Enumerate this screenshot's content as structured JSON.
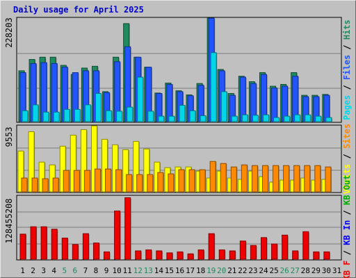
{
  "title": "Daily usage for April 2025",
  "colors": {
    "pages": "#00d6e8",
    "files": "#2255ff",
    "hits": "#1e8a5e",
    "sites": "#ff8a00",
    "visits": "#ffff00",
    "kb_f": "#ee0000",
    "kb_in": "#0000ee",
    "kb_out": "#00aa00",
    "weekend_day": "#1e8a5e",
    "weekday": "#000000"
  },
  "chart_data": [
    {
      "type": "bar",
      "panel": "hits-files-pages",
      "title": "",
      "ymax_label": "228203",
      "ylim": [
        0,
        228203
      ],
      "legend": [
        {
          "name": "Pages",
          "color": "#00d6e8"
        },
        {
          "sep": "/"
        },
        {
          "name": "Files",
          "color": "#2255ff"
        },
        {
          "sep": "/"
        },
        {
          "name": "Hits",
          "color": "#1e8a5e"
        }
      ],
      "categories": [
        "1",
        "2",
        "3",
        "4",
        "5",
        "6",
        "7",
        "8",
        "9",
        "10",
        "11",
        "12",
        "13",
        "14",
        "15",
        "16",
        "17",
        "18",
        "19",
        "20",
        "21",
        "22",
        "23",
        "24",
        "25",
        "26",
        "27",
        "28",
        "29",
        "30",
        "31"
      ],
      "weekend_days": [
        "5",
        "6",
        "12",
        "13",
        "19",
        "20",
        "26",
        "27"
      ],
      "series": [
        {
          "name": "Hits",
          "color": "#1e8a5e",
          "values": [
            112000,
            137000,
            142000,
            142000,
            124000,
            104000,
            118000,
            122000,
            66000,
            142000,
            216000,
            142000,
            120000,
            63000,
            85000,
            68000,
            59000,
            84000,
            228000,
            115000,
            62000,
            100000,
            88000,
            108000,
            78000,
            82000,
            108000,
            58000,
            58000,
            60000,
            null
          ]
        },
        {
          "name": "Files",
          "color": "#2255ff",
          "values": [
            108000,
            128000,
            130000,
            128000,
            120000,
            108000,
            112000,
            112000,
            64000,
            132000,
            165000,
            142000,
            120000,
            62000,
            82000,
            66000,
            57000,
            80000,
            228000,
            112000,
            58000,
            98000,
            84000,
            104000,
            74000,
            78000,
            100000,
            55000,
            55000,
            58000,
            null
          ]
        },
        {
          "name": "Pages",
          "color": "#00d6e8",
          "values": [
            24000,
            37000,
            21000,
            21000,
            27000,
            27000,
            37000,
            62000,
            24000,
            23000,
            32000,
            98000,
            23000,
            12000,
            12000,
            36000,
            24000,
            13000,
            152000,
            66000,
            12000,
            15000,
            14000,
            15000,
            9000,
            12000,
            15000,
            15000,
            12000,
            9000,
            null
          ]
        }
      ]
    },
    {
      "type": "bar",
      "panel": "visits-sites",
      "title": "",
      "ymax_label": "9553",
      "ylim": [
        0,
        9553
      ],
      "legend": [
        {
          "name": "Visits",
          "color": "#ffff00"
        },
        {
          "sep": "/"
        },
        {
          "name": "Sites",
          "color": "#ff8a00"
        }
      ],
      "categories": [
        "1",
        "2",
        "3",
        "4",
        "5",
        "6",
        "7",
        "8",
        "9",
        "10",
        "11",
        "12",
        "13",
        "14",
        "15",
        "16",
        "17",
        "18",
        "19",
        "20",
        "21",
        "22",
        "23",
        "24",
        "25",
        "26",
        "27",
        "28",
        "29",
        "30",
        "31"
      ],
      "series": [
        {
          "name": "Visits",
          "color": "#ffff00",
          "values": [
            5900,
            8700,
            4300,
            3900,
            6600,
            8200,
            9000,
            9553,
            7600,
            6800,
            6100,
            7300,
            6200,
            4300,
            3500,
            3600,
            3600,
            3000,
            2000,
            3000,
            2000,
            1800,
            3000,
            2200,
            1400,
            1700,
            1700,
            2000,
            1700,
            1800,
            null
          ]
        },
        {
          "name": "Sites",
          "color": "#ff8a00",
          "values": [
            2000,
            2000,
            1900,
            2000,
            3100,
            3100,
            3100,
            3300,
            3300,
            3200,
            2500,
            2500,
            2500,
            2800,
            2600,
            3200,
            3200,
            3200,
            4400,
            4100,
            3600,
            3900,
            3800,
            3800,
            3800,
            3800,
            3800,
            3800,
            3800,
            3600,
            null
          ]
        }
      ]
    },
    {
      "type": "bar",
      "panel": "kbytes",
      "title": "",
      "ymax_label": "128455208",
      "ylim": [
        0,
        128455208
      ],
      "legend": [
        {
          "name": "KB F",
          "color": "#ee0000"
        },
        {
          "sep": "/"
        },
        {
          "name": "KB In",
          "color": "#0000ee"
        },
        {
          "sep": "/"
        },
        {
          "name": "KB Out",
          "color": "#00aa00"
        }
      ],
      "categories": [
        "1",
        "2",
        "3",
        "4",
        "5",
        "6",
        "7",
        "8",
        "9",
        "10",
        "11",
        "12",
        "13",
        "14",
        "15",
        "16",
        "17",
        "18",
        "19",
        "20",
        "21",
        "22",
        "23",
        "24",
        "25",
        "26",
        "27",
        "28",
        "29",
        "30",
        "31"
      ],
      "series": [
        {
          "name": "KB F",
          "color": "#ee0000",
          "values": [
            51000000,
            66000000,
            66000000,
            61000000,
            43000000,
            30000000,
            52000000,
            33000000,
            15000000,
            98000000,
            125000000,
            17000000,
            19000000,
            17000000,
            13000000,
            15000000,
            11000000,
            19000000,
            52000000,
            19000000,
            17000000,
            37000000,
            28000000,
            44000000,
            31000000,
            49000000,
            17000000,
            56000000,
            15000000,
            15000000,
            null
          ]
        }
      ]
    }
  ]
}
